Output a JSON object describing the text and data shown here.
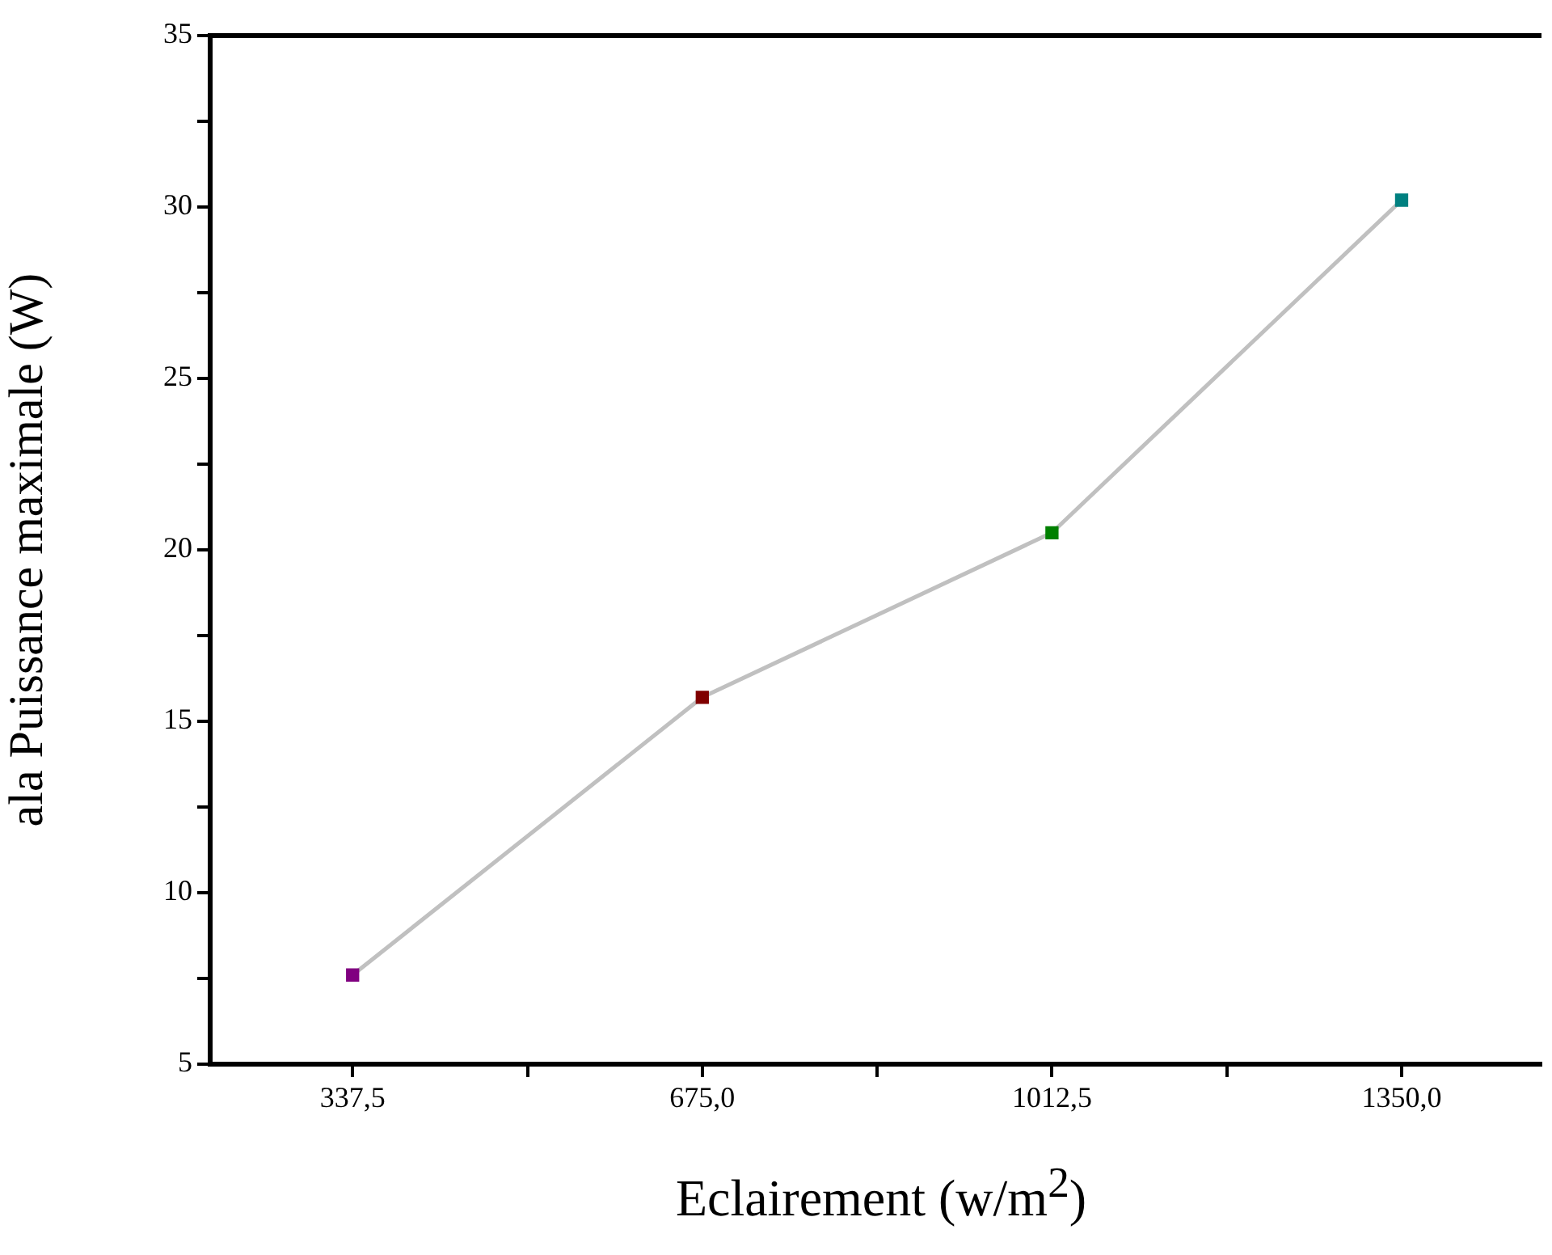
{
  "chart_data": {
    "type": "line",
    "xlabel": "Eclairement (w/m$^{2}$)",
    "ylabel": "ala Puissance maximale (W)",
    "x": [
      337.5,
      675,
      1012.5,
      1350
    ],
    "series": [
      {
        "color": "#c0c0c0",
        "colors": [
          "#800080",
          "#800000",
          "#008000",
          "#008080"
        ],
        "values": [
          7.6,
          15.7,
          20.5,
          30.2
        ]
      }
    ],
    "xlim": [
      200,
      1485
    ],
    "xticks": [
      {
        "value": 337.5,
        "label": "337,5"
      },
      {
        "value": 506.25,
        "label": null
      },
      {
        "value": 675,
        "label": "675,0"
      },
      {
        "value": 843.75,
        "label": null
      },
      {
        "value": 1012.5,
        "label": "1012,5"
      },
      {
        "value": 1181.25,
        "label": null
      },
      {
        "value": 1350,
        "label": "1350,0"
      }
    ],
    "ylim": [
      5,
      35
    ],
    "yticks": [
      5,
      {
        "value": 7.5,
        "label": null
      },
      10,
      {
        "value": 12.5,
        "label": null
      },
      15,
      {
        "value": 17.5,
        "label": null
      },
      20,
      {
        "value": 22.5,
        "label": null
      },
      25,
      {
        "value": 27.5,
        "label": null
      },
      30,
      {
        "value": 32.5,
        "label": null
      },
      35
    ],
    "marker": "square",
    "line_style": "solid",
    "grid": false,
    "legend": false
  }
}
